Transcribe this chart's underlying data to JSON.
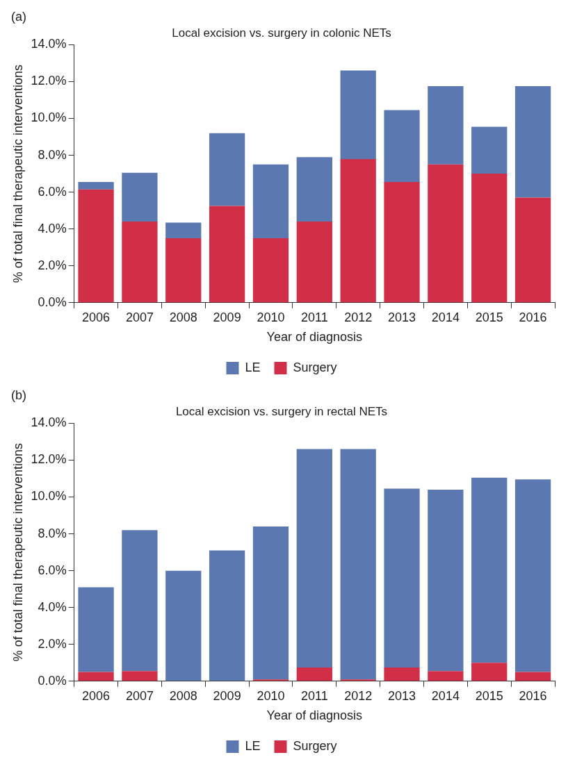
{
  "chart_data": [
    {
      "type": "bar",
      "title": "Local excision vs. surgery in colonic NETs",
      "annotations": [
        "(a)"
      ],
      "xlabel": "Year of diagnosis",
      "ylabel": "% of total final therapeutic interventions",
      "categories": [
        "2006",
        "2007",
        "2008",
        "2009",
        "2010",
        "2011",
        "2012",
        "2013",
        "2014",
        "2015",
        "2016"
      ],
      "stacked": true,
      "legend": "bottom",
      "grid": false,
      "ylim": [
        0,
        14
      ],
      "yticks": [
        {
          "value": 0,
          "label": "0.0%"
        },
        {
          "value": 2,
          "label": "2.0%"
        },
        {
          "value": 4,
          "label": "4.0%"
        },
        {
          "value": 6,
          "label": "6.0%"
        },
        {
          "value": 8,
          "label": "8.0%"
        },
        {
          "value": 10,
          "label": "10.0%"
        },
        {
          "value": 12,
          "label": "12.0%"
        },
        {
          "value": 14,
          "label": "14.0%"
        }
      ],
      "series": [
        {
          "name": "Surgery",
          "color": "#d12e48",
          "values": [
            6.15,
            4.4,
            3.5,
            5.25,
            3.5,
            4.4,
            7.8,
            6.55,
            7.5,
            7.0,
            5.7
          ]
        },
        {
          "name": "LE",
          "color": "#5b78b0",
          "values": [
            0.4,
            2.65,
            0.85,
            3.95,
            4.0,
            3.5,
            4.8,
            3.9,
            4.25,
            2.55,
            6.05
          ]
        }
      ]
    },
    {
      "type": "bar",
      "title": "Local excision vs. surgery in rectal NETs",
      "annotations": [
        "(b)"
      ],
      "xlabel": "Year of diagnosis",
      "ylabel": "% of total final therapeutic interventions",
      "categories": [
        "2006",
        "2007",
        "2008",
        "2009",
        "2010",
        "2011",
        "2012",
        "2013",
        "2014",
        "2015",
        "2016"
      ],
      "stacked": true,
      "legend": "bottom",
      "grid": false,
      "ylim": [
        0,
        14
      ],
      "yticks": [
        {
          "value": 0,
          "label": "0.0%"
        },
        {
          "value": 2,
          "label": "2.0%"
        },
        {
          "value": 4,
          "label": "4.0%"
        },
        {
          "value": 6,
          "label": "6.0%"
        },
        {
          "value": 8,
          "label": "8.0%"
        },
        {
          "value": 10,
          "label": "10.0%"
        },
        {
          "value": 12,
          "label": "12.0%"
        },
        {
          "value": 14,
          "label": "14.0%"
        }
      ],
      "series": [
        {
          "name": "Surgery",
          "color": "#d12e48",
          "values": [
            0.5,
            0.55,
            0,
            0,
            0.1,
            0.75,
            0.1,
            0.75,
            0.55,
            1.0,
            0.5
          ]
        },
        {
          "name": "LE",
          "color": "#5b78b0",
          "values": [
            4.6,
            7.65,
            6.0,
            7.1,
            8.3,
            11.85,
            12.5,
            9.7,
            9.85,
            10.05,
            10.45
          ]
        }
      ]
    }
  ]
}
